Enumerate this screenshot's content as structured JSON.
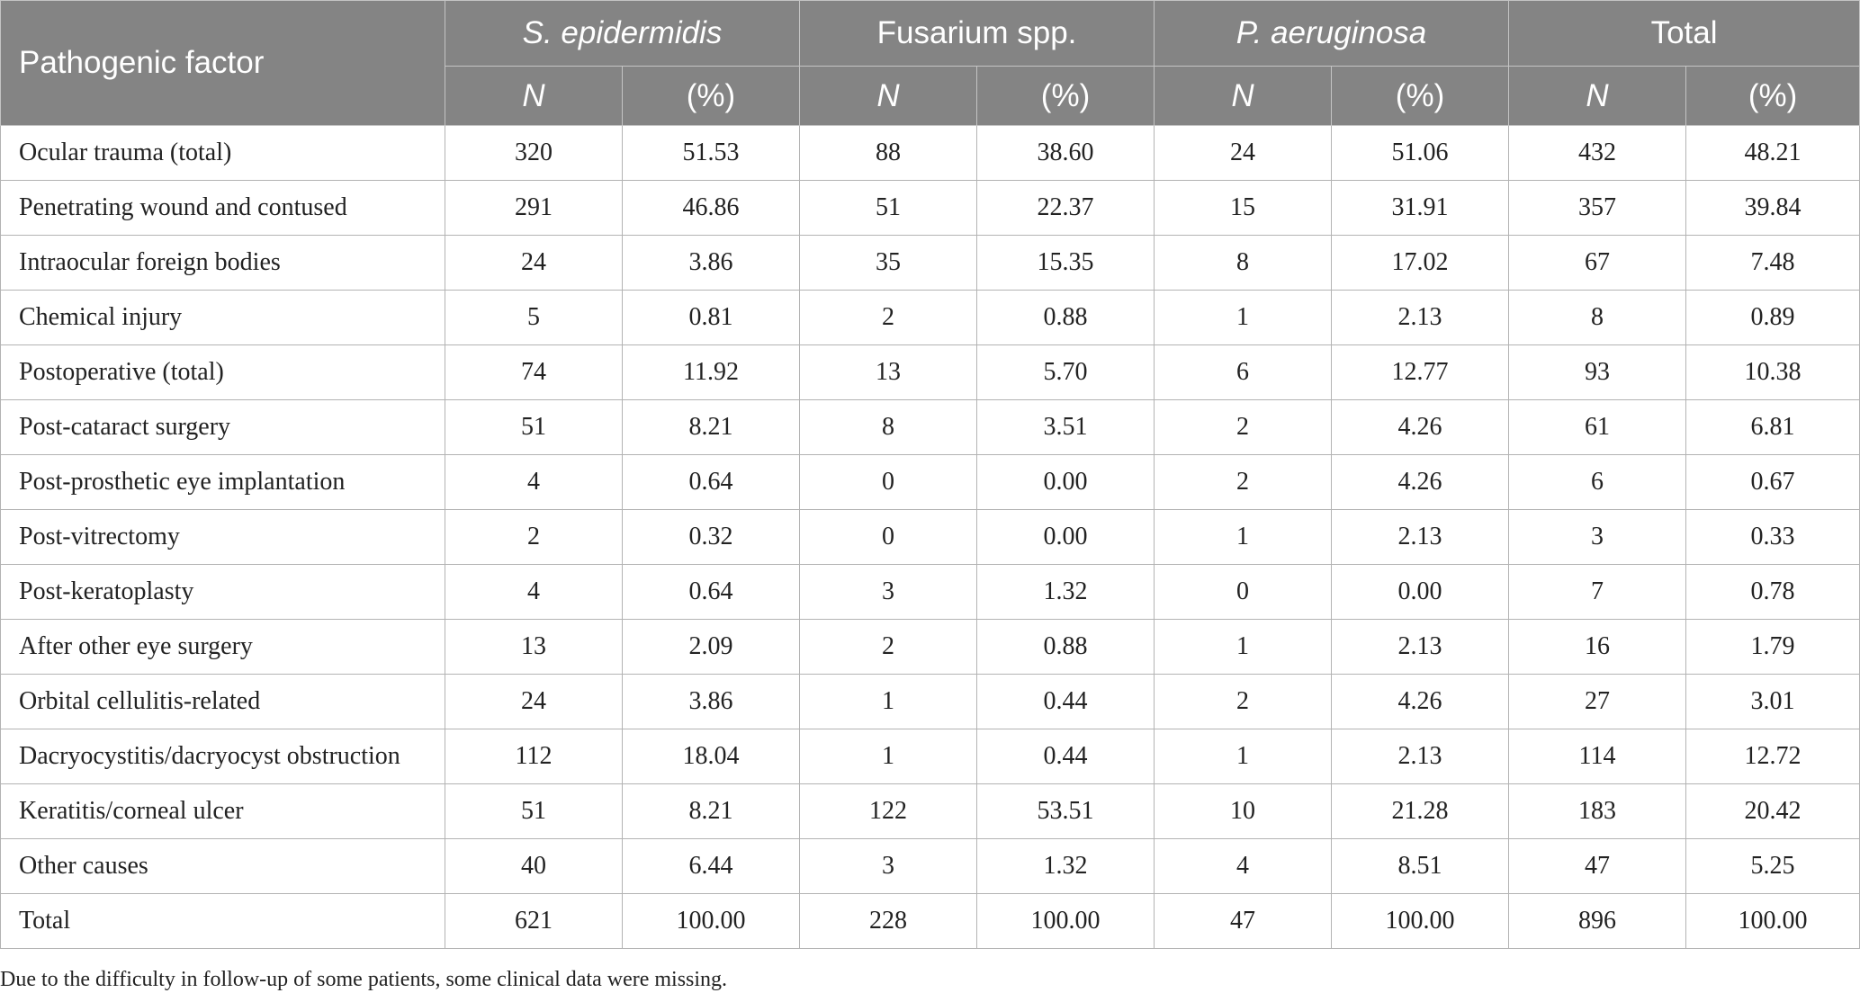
{
  "table": {
    "header": {
      "factor_label": "Pathogenic factor",
      "groups": [
        {
          "label": "S. epidermidis",
          "italic": true
        },
        {
          "label": "Fusarium spp.",
          "italic": false
        },
        {
          "label": "P. aeruginosa",
          "italic": true
        },
        {
          "label": "Total",
          "italic": false
        }
      ],
      "sub_n": "N",
      "sub_pct": "(%)"
    },
    "rows": [
      {
        "label": "Ocular trauma (total)",
        "values": [
          "320",
          "51.53",
          "88",
          "38.60",
          "24",
          "51.06",
          "432",
          "48.21"
        ]
      },
      {
        "label": "Penetrating wound and contused",
        "values": [
          "291",
          "46.86",
          "51",
          "22.37",
          "15",
          "31.91",
          "357",
          "39.84"
        ]
      },
      {
        "label": "Intraocular foreign bodies",
        "values": [
          "24",
          "3.86",
          "35",
          "15.35",
          "8",
          "17.02",
          "67",
          "7.48"
        ]
      },
      {
        "label": "Chemical injury",
        "values": [
          "5",
          "0.81",
          "2",
          "0.88",
          "1",
          "2.13",
          "8",
          "0.89"
        ]
      },
      {
        "label": "Postoperative (total)",
        "values": [
          "74",
          "11.92",
          "13",
          "5.70",
          "6",
          "12.77",
          "93",
          "10.38"
        ]
      },
      {
        "label": "Post-cataract surgery",
        "values": [
          "51",
          "8.21",
          "8",
          "3.51",
          "2",
          "4.26",
          "61",
          "6.81"
        ]
      },
      {
        "label": "Post-prosthetic eye implantation",
        "values": [
          "4",
          "0.64",
          "0",
          "0.00",
          "2",
          "4.26",
          "6",
          "0.67"
        ]
      },
      {
        "label": "Post-vitrectomy",
        "values": [
          "2",
          "0.32",
          "0",
          "0.00",
          "1",
          "2.13",
          "3",
          "0.33"
        ]
      },
      {
        "label": "Post-keratoplasty",
        "values": [
          "4",
          "0.64",
          "3",
          "1.32",
          "0",
          "0.00",
          "7",
          "0.78"
        ]
      },
      {
        "label": "After other eye surgery",
        "values": [
          "13",
          "2.09",
          "2",
          "0.88",
          "1",
          "2.13",
          "16",
          "1.79"
        ]
      },
      {
        "label": "Orbital cellulitis-related",
        "values": [
          "24",
          "3.86",
          "1",
          "0.44",
          "2",
          "4.26",
          "27",
          "3.01"
        ]
      },
      {
        "label": "Dacryocystitis/dacryocyst obstruction",
        "values": [
          "112",
          "18.04",
          "1",
          "0.44",
          "1",
          "2.13",
          "114",
          "12.72"
        ]
      },
      {
        "label": "Keratitis/corneal ulcer",
        "values": [
          "51",
          "8.21",
          "122",
          "53.51",
          "10",
          "21.28",
          "183",
          "20.42"
        ]
      },
      {
        "label": "Other causes",
        "values": [
          "40",
          "6.44",
          "3",
          "1.32",
          "4",
          "8.51",
          "47",
          "5.25"
        ]
      },
      {
        "label": "Total",
        "values": [
          "621",
          "100.00",
          "228",
          "100.00",
          "47",
          "100.00",
          "896",
          "100.00"
        ]
      }
    ],
    "footnote": "Due to the difficulty in follow-up of some patients, some clinical data were missing."
  },
  "colors": {
    "header_bg": "#848484",
    "header_text": "#ffffff",
    "border": "#b3b3b3"
  }
}
